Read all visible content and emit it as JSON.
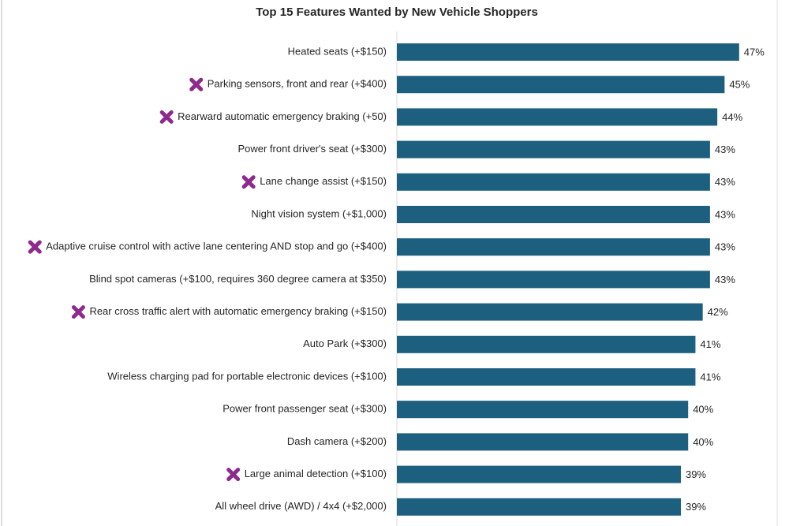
{
  "chart_data": {
    "type": "bar",
    "orientation": "horizontal",
    "title": "Top 15 Features Wanted by New Vehicle Shoppers",
    "categories": [
      "Heated seats (+$150)",
      "Parking sensors, front and rear (+$400)",
      "Rearward automatic emergency braking (+50)",
      "Power front driver's seat (+$300)",
      "Lane change assist (+$150)",
      "Night vision system (+$1,000)",
      "Adaptive cruise control with active lane centering AND stop and go (+$400)",
      "Blind spot cameras (+$100, requires 360 degree camera at $350)",
      "Rear cross traffic alert with automatic emergency braking (+$150)",
      "Auto Park (+$300)",
      "Wireless charging pad for portable electronic devices (+$100)",
      "Power front passenger seat (+$300)",
      "Dash camera (+$200)",
      "Large animal detection (+$100)",
      "All wheel drive (AWD) / 4x4 (+$2,000)"
    ],
    "values": [
      47,
      45,
      44,
      43,
      43,
      43,
      43,
      43,
      42,
      41,
      41,
      40,
      40,
      39,
      39
    ],
    "value_labels": [
      "47%",
      "45%",
      "44%",
      "43%",
      "43%",
      "43%",
      "43%",
      "43%",
      "42%",
      "41%",
      "41%",
      "40%",
      "40%",
      "39%",
      "39%"
    ],
    "color": "#1d5f7f",
    "marked": [
      false,
      true,
      true,
      false,
      true,
      false,
      true,
      false,
      true,
      false,
      false,
      false,
      false,
      true,
      false
    ],
    "marker_color": "#8e2a8e"
  }
}
